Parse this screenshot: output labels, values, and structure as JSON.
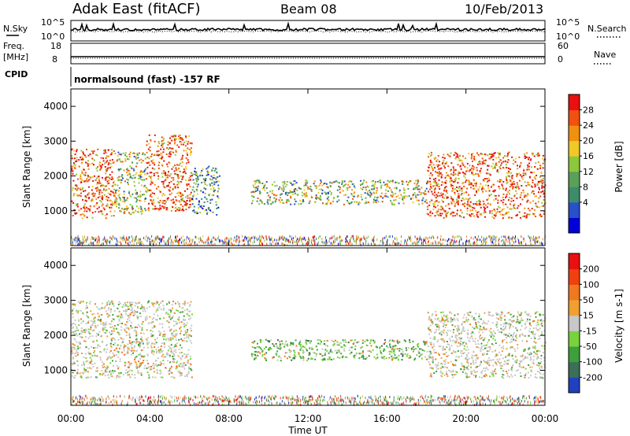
{
  "header": {
    "radar": "Adak East (fitACF)",
    "beam": "Beam 08",
    "date": "10/Feb/2013"
  },
  "top_panels": {
    "nsky_label": "N.Sky",
    "nsky_ticks": [
      "10^5",
      "10^0"
    ],
    "nsearch_label": "N.Search",
    "nsearch_ticks": [
      "10^5",
      "10^0"
    ],
    "freq_label": "Freq.",
    "freq_unit": "[MHz]",
    "freq_ticks": [
      "18",
      "8"
    ],
    "nave_label": "Nave",
    "nave_ticks": [
      "60",
      "0"
    ],
    "cpid_label": "CPID",
    "cpid_text": "normalsound (fast) -157 RF"
  },
  "chart_data": [
    {
      "type": "heatmap",
      "name": "power",
      "ylabel": "Slant Range [km]",
      "yticks": [
        "4000",
        "3000",
        "2000",
        "1000"
      ],
      "ylim": [
        0,
        4500
      ],
      "xlim": [
        0,
        24
      ],
      "colorbar": {
        "label": "Power [dB]",
        "ticks": [
          "28",
          "24",
          "20",
          "16",
          "12",
          "8",
          "4"
        ],
        "colors": [
          "#0000d8",
          "#2850c8",
          "#3c8c6c",
          "#5aa05a",
          "#8cc83c",
          "#f0c828",
          "#f09010",
          "#f05010",
          "#e81010"
        ]
      },
      "regions": [
        {
          "t0": 0.0,
          "t1": 2.2,
          "r0": 800,
          "r1": 2800,
          "level": "high"
        },
        {
          "t0": 2.2,
          "t1": 3.8,
          "r0": 900,
          "r1": 2700,
          "level": "mid"
        },
        {
          "t0": 3.8,
          "t1": 6.1,
          "r0": 1000,
          "r1": 3200,
          "level": "high"
        },
        {
          "t0": 6.1,
          "t1": 7.5,
          "r0": 900,
          "r1": 2300,
          "level": "low"
        },
        {
          "t0": 9.1,
          "t1": 18.0,
          "r0": 1200,
          "r1": 1900,
          "level": "mid"
        },
        {
          "t0": 18.0,
          "t1": 24.0,
          "r0": 800,
          "r1": 2700,
          "level": "high"
        }
      ]
    },
    {
      "type": "heatmap",
      "name": "velocity",
      "ylabel": "Slant Range [km]",
      "yticks": [
        "4000",
        "3000",
        "2000",
        "1000"
      ],
      "ylim": [
        0,
        4500
      ],
      "xlim": [
        0,
        24
      ],
      "xlabel": "Time UT",
      "xticks": [
        "00:00",
        "04:00",
        "08:00",
        "12:00",
        "16:00",
        "20:00",
        "00:00"
      ],
      "colorbar": {
        "label": "Velocity [m s-1]",
        "ticks": [
          "200",
          "100",
          "50",
          "15",
          "-15",
          "-50",
          "-100",
          "-200"
        ],
        "colors": [
          "#2040c0",
          "#3c6e5a",
          "#3ca03c",
          "#78d23c",
          "#c8c8c8",
          "#f0a030",
          "#f07820",
          "#f04010",
          "#e81010"
        ]
      },
      "regions": [
        {
          "t0": 0.0,
          "t1": 6.1,
          "r0": 800,
          "r1": 3000,
          "level": "gray"
        },
        {
          "t0": 9.1,
          "t1": 18.0,
          "r0": 1300,
          "r1": 1900,
          "level": "green"
        },
        {
          "t0": 18.0,
          "t1": 24.0,
          "r0": 800,
          "r1": 2700,
          "level": "gray"
        }
      ]
    }
  ]
}
